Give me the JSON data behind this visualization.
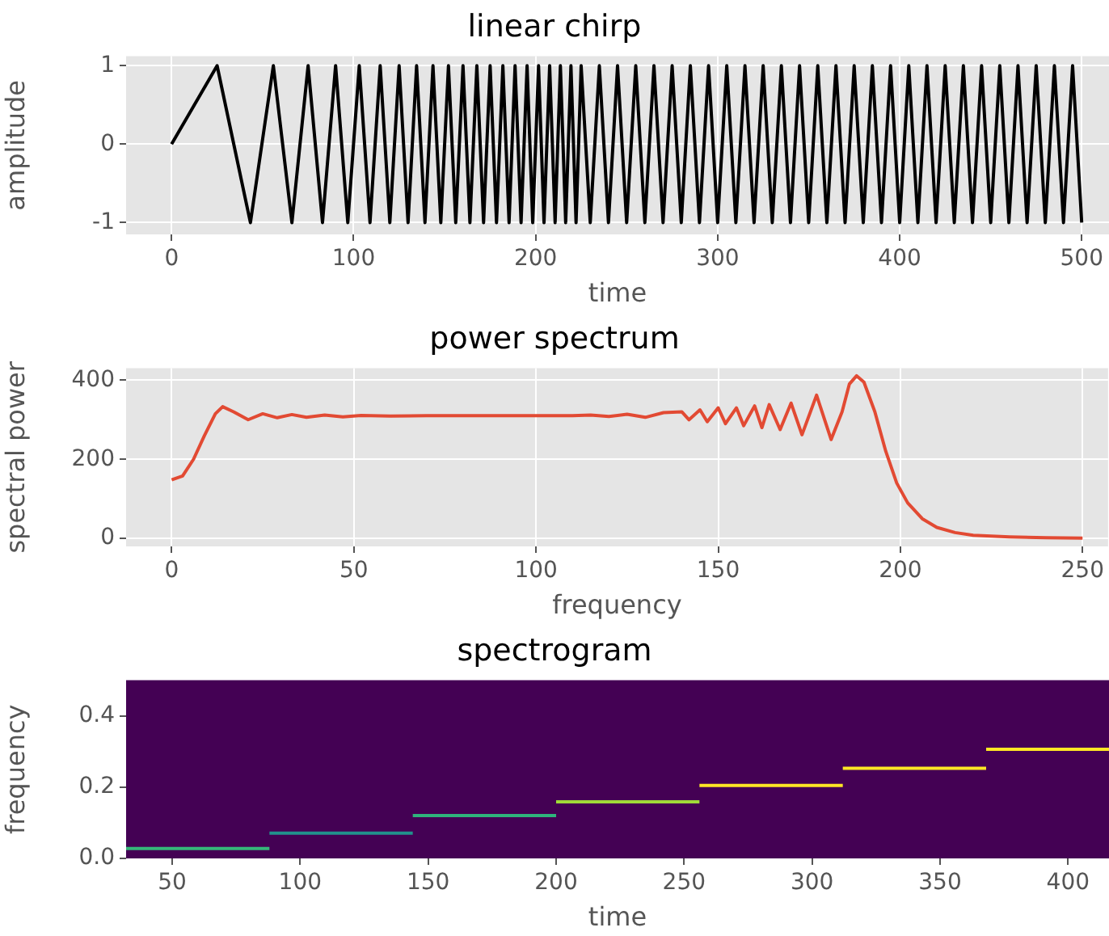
{
  "chart_data": [
    {
      "type": "line",
      "title": "linear chirp",
      "xlabel": "time",
      "ylabel": "amplitude",
      "color": "#000000",
      "grid": true,
      "xlim": [
        -25,
        515
      ],
      "ylim": [
        -1.15,
        1.12
      ],
      "xticks": [
        0,
        100,
        200,
        300,
        400,
        500
      ],
      "yticks": [
        -1,
        0,
        1
      ],
      "x": [
        0,
        25.0,
        43.3,
        55.9,
        66.1,
        75.0,
        82.9,
        90.1,
        96.8,
        103.1,
        109.0,
        114.6,
        119.9,
        125.0,
        129.9,
        134.6,
        139.2,
        143.6,
        147.9,
        152.1,
        156.1,
        160.1,
        163.9,
        167.7,
        171.4,
        175.0,
        178.5,
        182.0,
        185.4,
        188.7,
        192.0,
        195.3,
        198.4,
        201.6,
        204.6,
        207.7,
        210.7,
        213.6,
        216.5,
        219.4,
        222.2,
        225,
        230,
        235,
        240,
        245,
        250,
        255,
        260,
        265,
        270,
        275,
        280,
        285,
        290,
        295,
        300,
        305,
        310,
        315,
        320,
        325,
        330,
        335,
        340,
        345,
        350,
        355,
        360,
        365,
        370,
        375,
        380,
        385,
        390,
        395,
        400,
        405,
        410,
        415,
        420,
        425,
        430,
        435,
        440,
        445,
        450,
        455,
        460,
        465,
        470,
        475,
        480,
        485,
        490,
        495,
        500
      ],
      "values": [
        0,
        1,
        -1,
        1,
        -1,
        1,
        -1,
        1,
        -1,
        1,
        -1,
        1,
        -1,
        1,
        -1,
        1,
        -1,
        1,
        -1,
        1,
        -1,
        1,
        -1,
        1,
        -1,
        1,
        -1,
        1,
        -1,
        1,
        -1,
        1,
        -1,
        1,
        -1,
        1,
        -1,
        1,
        -1,
        1,
        -1,
        1,
        -1,
        1,
        -1,
        1,
        -1,
        1,
        -1,
        1,
        -1,
        1,
        -1,
        1,
        -1,
        1,
        -1,
        1,
        -1,
        1,
        -1,
        1,
        -1,
        1,
        -1,
        1,
        -1,
        1,
        -1,
        1,
        -1,
        1,
        -1,
        1,
        -1,
        1,
        -1,
        1,
        -1,
        1,
        -1,
        1,
        -1,
        1,
        -1,
        1,
        -1,
        1,
        -1,
        1,
        -1,
        1,
        -1,
        1,
        -1,
        1,
        -1
      ]
    },
    {
      "type": "line",
      "title": "power spectrum",
      "xlabel": "frequency",
      "ylabel": "spectral power",
      "color": "#e24a33",
      "grid": true,
      "xlim": [
        -12.5,
        257
      ],
      "ylim": [
        -20,
        430
      ],
      "xticks": [
        0,
        50,
        100,
        150,
        200,
        250
      ],
      "yticks": [
        0,
        200,
        400
      ],
      "x": [
        0,
        3,
        6,
        9,
        12,
        14,
        17,
        21,
        25,
        29,
        33,
        37,
        42,
        47,
        52,
        60,
        70,
        80,
        90,
        100,
        110,
        115,
        120,
        125,
        130,
        135,
        140,
        142,
        145,
        147,
        150,
        152,
        155,
        157,
        160,
        162,
        164,
        167,
        170,
        173,
        177,
        181,
        184,
        186,
        188,
        190,
        193,
        196,
        199,
        202,
        206,
        210,
        215,
        220,
        230,
        240,
        250
      ],
      "values": [
        148,
        158,
        200,
        260,
        315,
        333,
        320,
        300,
        315,
        305,
        313,
        306,
        312,
        307,
        311,
        309,
        310,
        310,
        310,
        310,
        310,
        312,
        308,
        314,
        306,
        318,
        320,
        300,
        325,
        295,
        330,
        290,
        330,
        285,
        335,
        280,
        338,
        275,
        342,
        262,
        362,
        250,
        320,
        390,
        411,
        395,
        320,
        220,
        140,
        90,
        50,
        28,
        15,
        8,
        4,
        2,
        1
      ]
    },
    {
      "type": "line",
      "title": "spectrogram",
      "xlabel": "time",
      "ylabel": "frequency",
      "grid": false,
      "xlim": [
        32,
        416
      ],
      "ylim": [
        0,
        0.5
      ],
      "xticks": [
        50,
        100,
        150,
        200,
        250,
        300,
        350,
        400
      ],
      "yticks": [
        {
          "value": 0,
          "label": "0.0"
        },
        {
          "value": 0.2,
          "label": "0.2"
        },
        {
          "value": 0.4,
          "label": "0.4"
        }
      ],
      "series": [
        {
          "color": "#35b779",
          "x": [
            32,
            88
          ],
          "values": [
            0.028,
            0.028
          ]
        },
        {
          "color": "#21918c",
          "x": [
            88,
            144
          ],
          "values": [
            0.071,
            0.071
          ]
        },
        {
          "color": "#2fb47c",
          "x": [
            144,
            200
          ],
          "values": [
            0.12,
            0.12
          ]
        },
        {
          "color": "#a0da39",
          "x": [
            200,
            256
          ],
          "values": [
            0.159,
            0.159
          ]
        },
        {
          "color": "#fde725",
          "x": [
            256,
            312
          ],
          "values": [
            0.205,
            0.205
          ]
        },
        {
          "color": "#fde725",
          "x": [
            312,
            368
          ],
          "values": [
            0.253,
            0.253
          ]
        },
        {
          "color": "#fde725",
          "x": [
            368,
            416
          ],
          "values": [
            0.306,
            0.306
          ]
        }
      ]
    }
  ]
}
